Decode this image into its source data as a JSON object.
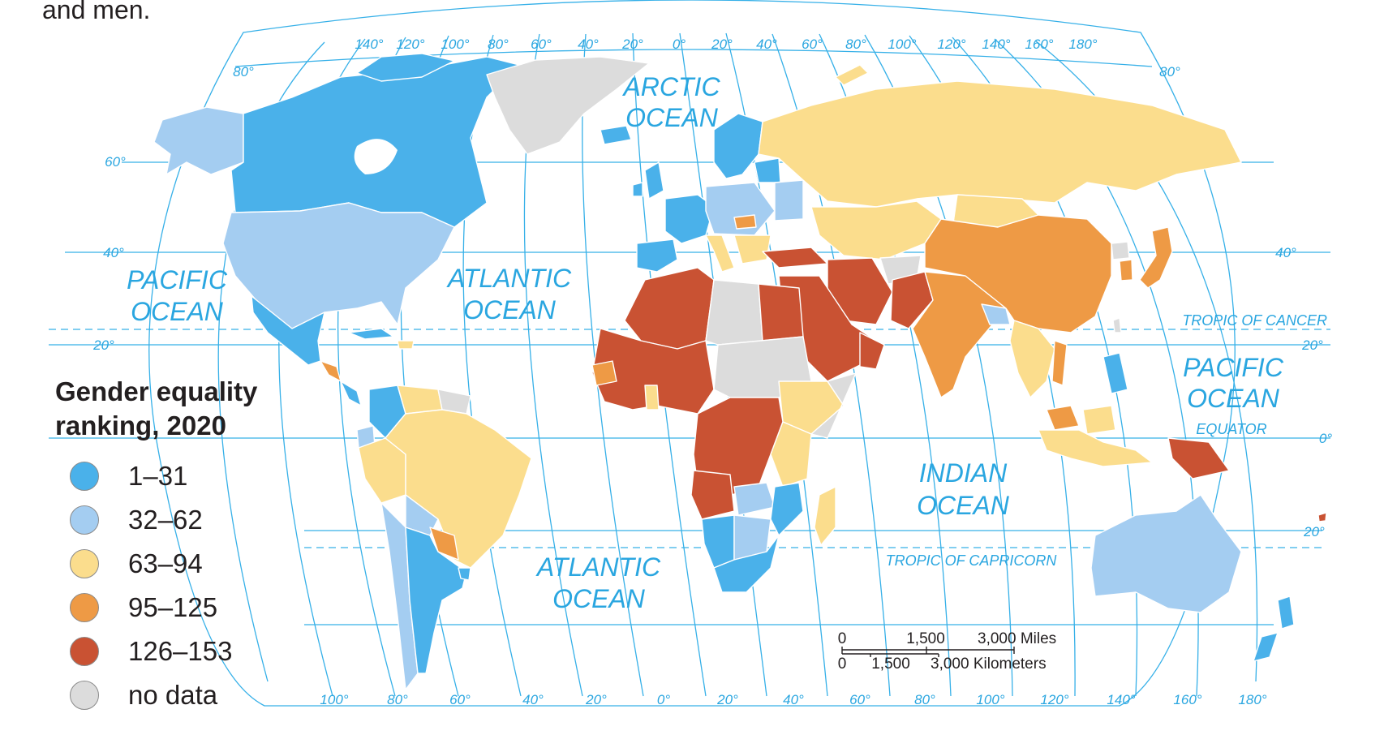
{
  "caption": "and men.",
  "legend": {
    "title": "Gender equality ranking, 2020",
    "items": [
      {
        "label": "1–31",
        "color": "#4ab1ea"
      },
      {
        "label": "32–62",
        "color": "#a4cdf1"
      },
      {
        "label": "63–94",
        "color": "#fbdd8d"
      },
      {
        "label": "95–125",
        "color": "#ee9a45"
      },
      {
        "label": "126–153",
        "color": "#c95233"
      },
      {
        "label": "no data",
        "color": "#dcdcdc"
      }
    ]
  },
  "oceans": {
    "arctic": [
      "ARCTIC",
      "OCEAN"
    ],
    "pacific_west": [
      "PACIFIC",
      "OCEAN"
    ],
    "atlantic_north": [
      "ATLANTIC",
      "OCEAN"
    ],
    "atlantic_south": [
      "ATLANTIC",
      "OCEAN"
    ],
    "indian": [
      "INDIAN",
      "OCEAN"
    ],
    "pacific_east": [
      "PACIFIC",
      "OCEAN"
    ]
  },
  "lines": {
    "tropic_cancer": "TROPIC OF CANCER",
    "tropic_capricorn": "TROPIC OF CAPRICORN",
    "equator": "EQUATOR"
  },
  "top_longitudes": [
    "140°",
    "120°",
    "100°",
    "80°",
    "60°",
    "40°",
    "20°",
    "0°",
    "20°",
    "40°",
    "60°",
    "80°",
    "100°",
    "120°",
    "140°",
    "160°",
    "180°"
  ],
  "bottom_longitudes": [
    "100°",
    "80°",
    "60°",
    "40°",
    "20°",
    "0°",
    "20°",
    "40°",
    "60°",
    "80°",
    "100°",
    "120°",
    "140°",
    "160°",
    "180°"
  ],
  "latitudes": {
    "west_80": "80°",
    "west_60": "60°",
    "west_40": "40°",
    "west_20": "20°",
    "east_80": "80°",
    "east_40": "40°",
    "east_20n": "20°",
    "east_0": "0°",
    "east_20s": "20°"
  },
  "scale_bar": {
    "miles": [
      "0",
      "1,500",
      "3,000 Miles"
    ],
    "km": [
      "0",
      "1,500",
      "3,000 Kilometers"
    ]
  }
}
